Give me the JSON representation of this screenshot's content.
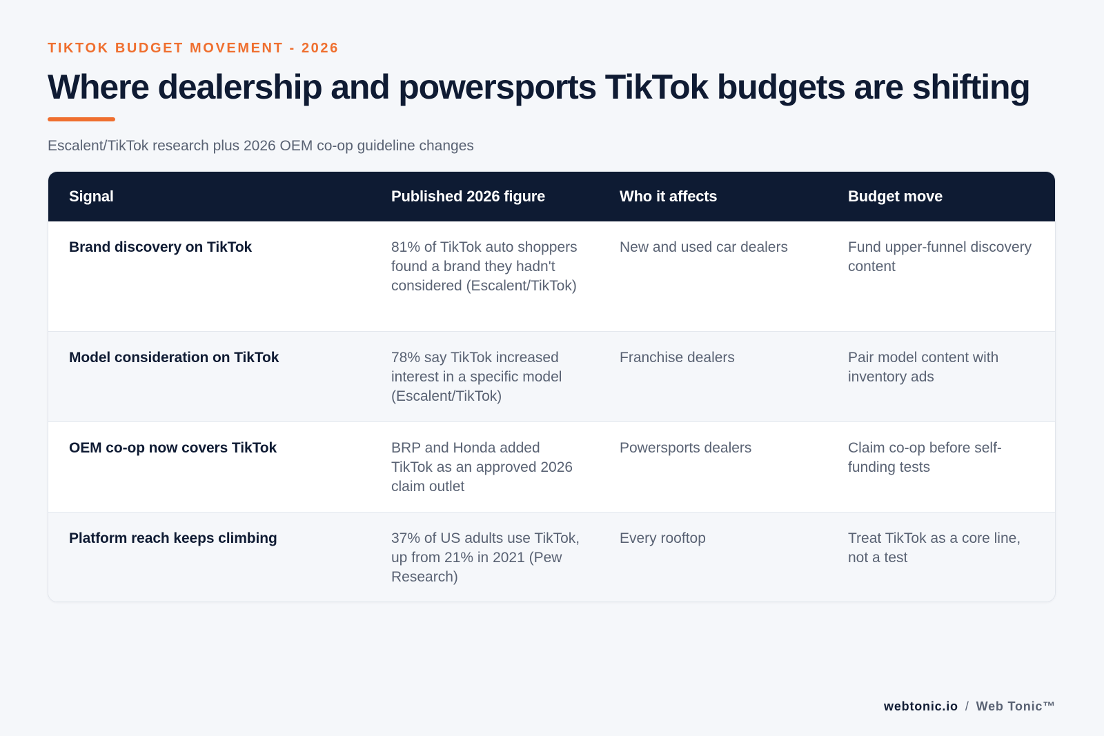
{
  "header": {
    "eyebrow": "TIKTOK BUDGET MOVEMENT - 2026",
    "title": "Where dealership and powersports TikTok budgets are shifting",
    "subtitle": "Escalent/TikTok research plus 2026 OEM co-op guideline changes",
    "accent_color": "#ef6f2f"
  },
  "table": {
    "header_bg": "#0e1b33",
    "columns": [
      "Signal",
      "Published 2026 figure",
      "Who it affects",
      "Budget move"
    ],
    "rows": [
      {
        "signal": "Brand discovery on TikTok",
        "figure": "81% of TikTok auto shoppers found a brand they hadn't considered (Escalent/TikTok)",
        "affects": "New and used car dealers",
        "move": "Fund upper-funnel discovery content"
      },
      {
        "signal": "Model consideration on TikTok",
        "figure": "78% say TikTok increased interest in a specific model (Escalent/TikTok)",
        "affects": "Franchise dealers",
        "move": "Pair model content with inventory ads"
      },
      {
        "signal": "OEM co-op now covers TikTok",
        "figure": "BRP and Honda added TikTok as an approved 2026 claim outlet",
        "affects": "Powersports dealers",
        "move": "Claim co-op before self-funding tests"
      },
      {
        "signal": "Platform reach keeps climbing",
        "figure": "37% of US adults use TikTok, up from 21% in 2021 (Pew Research)",
        "affects": "Every rooftop",
        "move": "Treat TikTok as a core line, not a test"
      }
    ]
  },
  "footer": {
    "domain": "webtonic.io",
    "separator": "/",
    "brand": "Web Tonic™"
  }
}
